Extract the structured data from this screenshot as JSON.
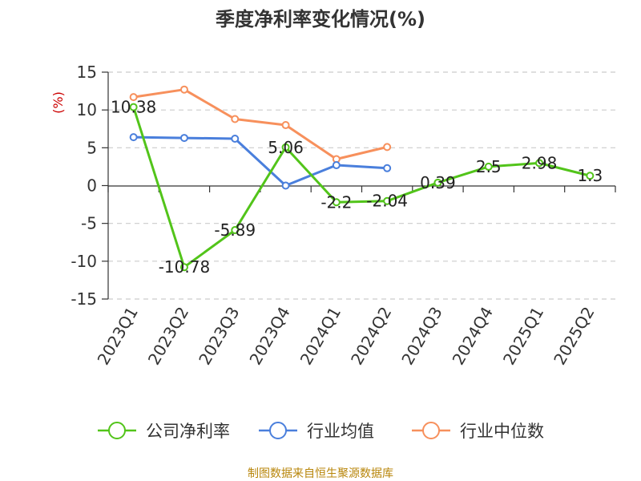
{
  "chart_data": {
    "type": "line",
    "title": "季度净利率变化情况(%)",
    "ylabel": "(%)",
    "xlabel": "",
    "categories": [
      "2023Q1",
      "2023Q2",
      "2023Q3",
      "2023Q4",
      "2024Q1",
      "2024Q2",
      "2024Q3",
      "2024Q4",
      "2025Q1",
      "2025Q2"
    ],
    "ylim": [
      -15,
      15
    ],
    "yticks": [
      15,
      10,
      5,
      0,
      -5,
      -10,
      -15
    ],
    "grid": true,
    "legend_position": "bottom",
    "series": [
      {
        "name": "公司净利率",
        "color": "#52c41a",
        "values": [
          10.38,
          -10.78,
          -5.89,
          5.06,
          -2.2,
          -2.04,
          0.39,
          2.5,
          2.98,
          1.3
        ],
        "labels": [
          "10.38",
          "-10.78",
          "-5.89",
          "5.06",
          "-2.2",
          "-2.04",
          "0.39",
          "2.5",
          "2.98",
          "1.3"
        ]
      },
      {
        "name": "行业均值",
        "color": "#4a7fdc",
        "values": [
          6.4,
          6.3,
          6.2,
          0.0,
          2.7,
          2.3,
          null,
          null,
          null,
          null
        ]
      },
      {
        "name": "行业中位数",
        "color": "#f7905c",
        "values": [
          11.7,
          12.7,
          8.8,
          8.0,
          3.5,
          5.1,
          null,
          null,
          null,
          null
        ]
      }
    ]
  },
  "source_text": "制图数据来自恒生聚源数据库"
}
